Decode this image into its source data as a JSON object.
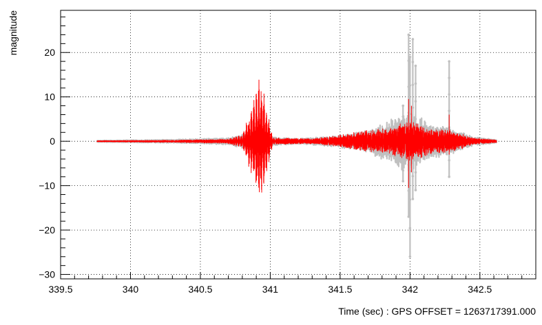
{
  "chart_data": {
    "type": "line",
    "title": "",
    "xlabel": "Time (sec) : GPS OFFSET = 1263717391.000",
    "ylabel": "magnitude",
    "xlim": [
      339.5,
      342.9
    ],
    "ylim": [
      -31,
      29.5
    ],
    "x_ticks": [
      339.5,
      340,
      340.5,
      341,
      341.5,
      342,
      342.5
    ],
    "x_tick_labels": [
      "339.5",
      "340",
      "340.5",
      "341",
      "341.5",
      "342",
      "342.5"
    ],
    "y_ticks": [
      -30,
      -20,
      -10,
      0,
      10,
      20
    ],
    "y_tick_labels": [
      "−30",
      "−20",
      "−10",
      "0",
      "10",
      "20"
    ],
    "grid": true,
    "series": [
      {
        "color": "#c0c0c0",
        "marker": "dot",
        "x_start": 339.76,
        "x_end": 342.62,
        "envelope": [
          {
            "x": 339.76,
            "amp": 0.2
          },
          {
            "x": 340.3,
            "amp": 0.4
          },
          {
            "x": 340.7,
            "amp": 0.8
          },
          {
            "x": 340.85,
            "amp": 2.0
          },
          {
            "x": 340.93,
            "amp": 2.2
          },
          {
            "x": 341.0,
            "amp": 1.0
          },
          {
            "x": 341.2,
            "amp": 0.6
          },
          {
            "x": 341.45,
            "amp": 1.2
          },
          {
            "x": 341.7,
            "amp": 2.5
          },
          {
            "x": 341.9,
            "amp": 6.0
          },
          {
            "x": 342.0,
            "amp": 7.0
          },
          {
            "x": 342.15,
            "amp": 4.0
          },
          {
            "x": 342.3,
            "amp": 3.0
          },
          {
            "x": 342.45,
            "amp": 1.0
          },
          {
            "x": 342.62,
            "amp": 0.4
          }
        ],
        "spikes": [
          {
            "x": 341.95,
            "max": 8.0,
            "min": -9.0
          },
          {
            "x": 341.99,
            "max": 24.0,
            "min": -17.0
          },
          {
            "x": 342.0,
            "max": 19.0,
            "min": -26.0
          },
          {
            "x": 342.02,
            "max": 23.0,
            "min": -13.0
          },
          {
            "x": 342.04,
            "max": 17.0,
            "min": -11.0
          },
          {
            "x": 342.28,
            "max": 18.0,
            "min": -8.0
          }
        ]
      },
      {
        "color": "#ff0000",
        "marker": "none",
        "x_start": 339.76,
        "x_end": 342.62,
        "envelope": [
          {
            "x": 339.76,
            "amp": 0.15
          },
          {
            "x": 340.3,
            "amp": 0.25
          },
          {
            "x": 340.7,
            "amp": 0.5
          },
          {
            "x": 340.8,
            "amp": 1.5
          },
          {
            "x": 340.88,
            "amp": 9.0
          },
          {
            "x": 340.93,
            "amp": 15.5
          },
          {
            "x": 340.97,
            "amp": 8.0
          },
          {
            "x": 341.02,
            "amp": 0.8
          },
          {
            "x": 341.3,
            "amp": 0.6
          },
          {
            "x": 341.45,
            "amp": 1.2
          },
          {
            "x": 341.7,
            "amp": 2.5
          },
          {
            "x": 341.9,
            "amp": 3.5
          },
          {
            "x": 342.0,
            "amp": 5.0
          },
          {
            "x": 342.15,
            "amp": 3.0
          },
          {
            "x": 342.3,
            "amp": 2.5
          },
          {
            "x": 342.45,
            "amp": 0.8
          },
          {
            "x": 342.62,
            "amp": 0.3
          }
        ],
        "spikes": [
          {
            "x": 341.99,
            "max": 9.5,
            "min": -10.5
          },
          {
            "x": 342.01,
            "max": 8.0,
            "min": -7.0
          },
          {
            "x": 342.28,
            "max": 6.0,
            "min": -3.0
          }
        ]
      }
    ]
  }
}
